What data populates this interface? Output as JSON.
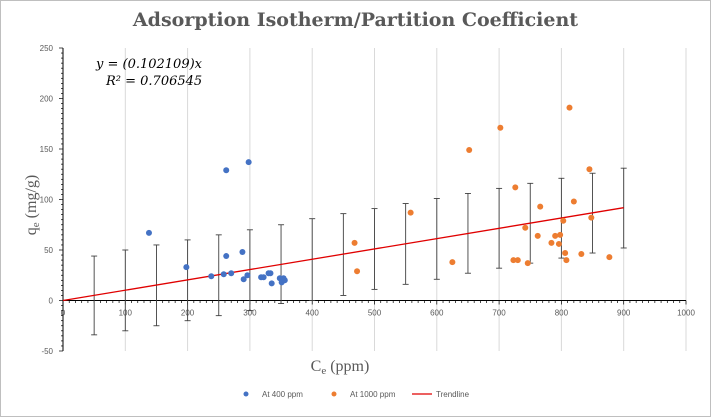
{
  "chart_data": {
    "type": "scatter",
    "title": "Adsorption Isotherm/Partition Coefficient",
    "xlabel": "C",
    "xlabel_sub": "e",
    "xlabel_unit": " (ppm)",
    "ylabel": "q",
    "ylabel_sub": "e",
    "ylabel_unit": " (mg/g)",
    "xlim": [
      0,
      1000
    ],
    "ylim": [
      -50,
      250
    ],
    "xticks": [
      0,
      100,
      200,
      300,
      400,
      500,
      600,
      700,
      800,
      900,
      1000
    ],
    "yticks": [
      -50,
      0,
      50,
      100,
      150,
      200,
      250
    ],
    "grid": "vertical",
    "legend_position": "bottom",
    "equation_line1": "y = (0.102109)x",
    "equation_line2": "R² = 0.706545",
    "series": [
      {
        "name": "At 400 ppm",
        "color": "#4472C4",
        "points": [
          [
            138,
            67
          ],
          [
            198,
            33
          ],
          [
            238,
            24
          ],
          [
            258,
            26
          ],
          [
            262,
            44
          ],
          [
            262,
            129
          ],
          [
            270,
            27
          ],
          [
            288,
            48
          ],
          [
            290,
            21
          ],
          [
            296,
            25
          ],
          [
            298,
            137
          ],
          [
            318,
            23
          ],
          [
            322,
            23
          ],
          [
            330,
            27
          ],
          [
            333,
            27
          ],
          [
            335,
            17
          ],
          [
            348,
            22
          ],
          [
            351,
            18
          ],
          [
            354,
            22
          ],
          [
            356,
            20
          ]
        ]
      },
      {
        "name": "At 1000 ppm",
        "color": "#ED7D31",
        "points": [
          [
            468,
            57
          ],
          [
            472,
            29
          ],
          [
            558,
            87
          ],
          [
            625,
            38
          ],
          [
            652,
            149
          ],
          [
            702,
            171
          ],
          [
            723,
            40
          ],
          [
            726,
            112
          ],
          [
            730,
            40
          ],
          [
            742,
            72
          ],
          [
            746,
            37
          ],
          [
            762,
            64
          ],
          [
            766,
            93
          ],
          [
            784,
            57
          ],
          [
            790,
            64
          ],
          [
            796,
            56
          ],
          [
            798,
            65
          ],
          [
            803,
            79
          ],
          [
            806,
            47
          ],
          [
            808,
            40
          ],
          [
            813,
            191
          ],
          [
            820,
            98
          ],
          [
            832,
            46
          ],
          [
            845,
            130
          ],
          [
            848,
            82
          ],
          [
            877,
            43
          ]
        ]
      }
    ],
    "trendline": {
      "name": "Trendline",
      "color": "#E00000",
      "slope": 0.102109,
      "x_range": [
        0,
        900
      ],
      "error_bars": [
        {
          "x": 50,
          "low": -34,
          "high": 44
        },
        {
          "x": 100,
          "low": -30,
          "high": 50
        },
        {
          "x": 150,
          "low": -25,
          "high": 55
        },
        {
          "x": 250,
          "low": -15,
          "high": 65
        },
        {
          "x": 300,
          "low": -10,
          "high": 70
        },
        {
          "x": 350,
          "low": -3,
          "high": 75
        },
        {
          "x": 400,
          "low": 0,
          "high": 81
        },
        {
          "x": 450,
          "low": 5,
          "high": 86
        },
        {
          "x": 500,
          "low": 11,
          "high": 91
        },
        {
          "x": 550,
          "low": 16,
          "high": 96
        },
        {
          "x": 600,
          "low": 21,
          "high": 101
        },
        {
          "x": 650,
          "low": 27,
          "high": 106
        },
        {
          "x": 700,
          "low": 32,
          "high": 111
        },
        {
          "x": 750,
          "low": 37,
          "high": 116
        },
        {
          "x": 800,
          "low": 42,
          "high": 121
        },
        {
          "x": 850,
          "low": 47,
          "high": 126
        },
        {
          "x": 900,
          "low": 52,
          "high": 131
        },
        {
          "x": 200,
          "low": -20,
          "high": 60
        }
      ]
    }
  }
}
